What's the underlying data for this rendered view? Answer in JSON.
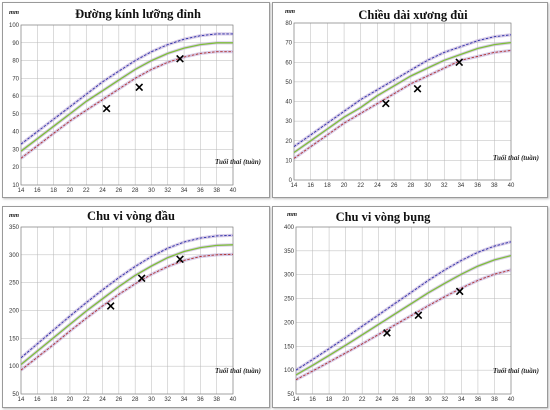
{
  "colors": {
    "p95": "#2b2fa8",
    "p50": "#7fbf3a",
    "p5": "#b0302f",
    "band": "#b9a4d6",
    "marker": "#000000",
    "grid": "#b8b8b8"
  },
  "chart_data": [
    {
      "type": "line",
      "title": "Đường kính lưỡng đỉnh",
      "unit": "mm",
      "xlabel": "Tuổi thai (tuần)",
      "xlim": [
        14,
        40
      ],
      "ylim": [
        10,
        100
      ],
      "xticks": [
        "14",
        "16",
        "18",
        "20",
        "22",
        "24",
        "26",
        "28",
        "30",
        "32",
        "34",
        "36",
        "38",
        "40"
      ],
      "yticks": [
        "10",
        "20",
        "30",
        "40",
        "50",
        "60",
        "70",
        "80",
        "90",
        "100"
      ],
      "x": [
        14,
        16,
        18,
        20,
        22,
        24,
        26,
        28,
        30,
        32,
        34,
        36,
        38,
        40
      ],
      "series": [
        {
          "key": "p95",
          "style": "dashed",
          "values": [
            33,
            40,
            47,
            54,
            61,
            68,
            74,
            80,
            85,
            89,
            92,
            94,
            95,
            95
          ]
        },
        {
          "key": "p50",
          "style": "solid",
          "values": [
            29,
            36,
            43,
            50,
            57,
            63,
            69,
            75,
            80,
            84,
            87,
            89,
            90,
            90
          ]
        },
        {
          "key": "p5",
          "style": "dashed",
          "values": [
            25,
            32,
            39,
            46,
            52,
            58,
            64,
            70,
            75,
            79,
            82,
            84,
            85,
            85
          ]
        }
      ],
      "points": [
        {
          "x": 24.5,
          "y": 53
        },
        {
          "x": 28.5,
          "y": 65
        },
        {
          "x": 33.5,
          "y": 81
        }
      ]
    },
    {
      "type": "line",
      "title": "Chiều dài xương đùi",
      "unit": "mm",
      "xlabel": "Tuổi thai (tuần)",
      "xlim": [
        14,
        40
      ],
      "ylim": [
        0,
        80
      ],
      "xticks": [
        "14",
        "16",
        "18",
        "20",
        "22",
        "24",
        "26",
        "28",
        "30",
        "32",
        "34",
        "36",
        "38",
        "40"
      ],
      "yticks": [
        "0",
        "10",
        "20",
        "30",
        "40",
        "50",
        "60",
        "70",
        "80"
      ],
      "x": [
        14,
        16,
        18,
        20,
        22,
        24,
        26,
        28,
        30,
        32,
        34,
        36,
        38,
        40
      ],
      "series": [
        {
          "key": "p95",
          "style": "dashed",
          "values": [
            17,
            23,
            29,
            35,
            41,
            46,
            51,
            56,
            61,
            65,
            68,
            71,
            73,
            74
          ]
        },
        {
          "key": "p50",
          "style": "solid",
          "values": [
            14,
            20,
            26,
            32,
            37,
            43,
            48,
            53,
            57,
            61,
            64,
            67,
            69,
            70
          ]
        },
        {
          "key": "p5",
          "style": "dashed",
          "values": [
            11,
            17,
            23,
            29,
            34,
            39,
            44,
            49,
            53,
            57,
            61,
            63,
            65,
            66
          ]
        }
      ],
      "points": [
        {
          "x": 25,
          "y": 39
        },
        {
          "x": 28.8,
          "y": 46.5
        },
        {
          "x": 33.8,
          "y": 60
        }
      ]
    },
    {
      "type": "line",
      "title": "Chu vi vòng đầu",
      "unit": "mm",
      "xlabel": "Tuổi thai (tuần)",
      "xlim": [
        14,
        40
      ],
      "ylim": [
        50,
        350
      ],
      "xticks": [
        "14",
        "16",
        "18",
        "20",
        "22",
        "24",
        "26",
        "28",
        "30",
        "32",
        "34",
        "36",
        "38",
        "40"
      ],
      "yticks": [
        "50",
        "100",
        "150",
        "200",
        "250",
        "300",
        "350"
      ],
      "x": [
        14,
        16,
        18,
        20,
        22,
        24,
        26,
        28,
        30,
        32,
        34,
        36,
        38,
        40
      ],
      "series": [
        {
          "key": "p95",
          "style": "dashed",
          "values": [
            115,
            140,
            165,
            190,
            214,
            237,
            259,
            279,
            297,
            312,
            323,
            330,
            334,
            335
          ]
        },
        {
          "key": "p50",
          "style": "solid",
          "values": [
            103,
            127,
            151,
            175,
            199,
            221,
            243,
            263,
            280,
            295,
            306,
            313,
            317,
            318
          ]
        },
        {
          "key": "p5",
          "style": "dashed",
          "values": [
            93,
            116,
            139,
            163,
            186,
            208,
            229,
            248,
            265,
            279,
            290,
            297,
            300,
            301
          ]
        }
      ],
      "points": [
        {
          "x": 25,
          "y": 208
        },
        {
          "x": 28.8,
          "y": 258
        },
        {
          "x": 33.5,
          "y": 292
        }
      ]
    },
    {
      "type": "line",
      "title": "Chu vi vòng bụng",
      "unit": "mm",
      "xlabel": "Tuổi thai (tuần)",
      "xlim": [
        14,
        40
      ],
      "ylim": [
        50,
        400
      ],
      "xticks": [
        "14",
        "16",
        "18",
        "20",
        "22",
        "24",
        "26",
        "28",
        "30",
        "32",
        "34",
        "36",
        "38",
        "40"
      ],
      "yticks": [
        "50",
        "100",
        "150",
        "200",
        "250",
        "300",
        "350",
        "400"
      ],
      "x": [
        14,
        16,
        18,
        20,
        22,
        24,
        26,
        28,
        30,
        32,
        34,
        36,
        38,
        40
      ],
      "series": [
        {
          "key": "p95",
          "style": "dashed",
          "values": [
            100,
            122,
            145,
            168,
            192,
            216,
            240,
            264,
            288,
            310,
            330,
            347,
            360,
            369
          ]
        },
        {
          "key": "p50",
          "style": "solid",
          "values": [
            90,
            110,
            131,
            152,
            174,
            196,
            218,
            240,
            262,
            282,
            301,
            318,
            331,
            340
          ]
        },
        {
          "key": "p5",
          "style": "dashed",
          "values": [
            80,
            98,
            117,
            136,
            155,
            175,
            195,
            215,
            235,
            254,
            272,
            288,
            301,
            310
          ]
        }
      ],
      "points": [
        {
          "x": 25,
          "y": 178
        },
        {
          "x": 28.8,
          "y": 215
        },
        {
          "x": 33.8,
          "y": 265
        }
      ]
    }
  ]
}
